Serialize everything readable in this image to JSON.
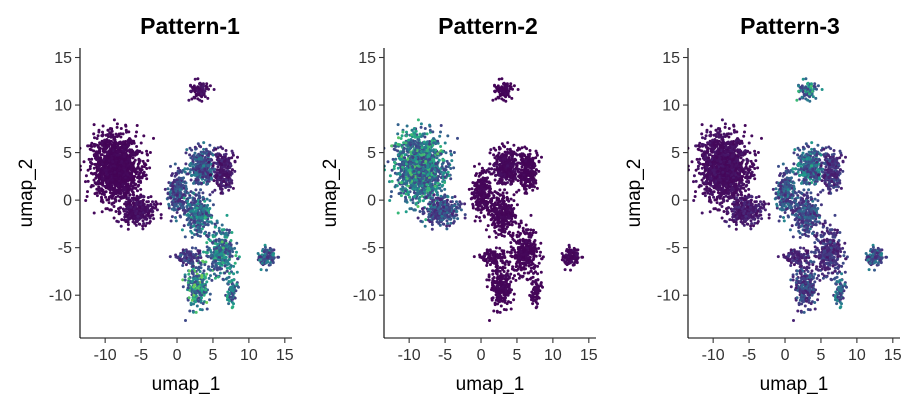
{
  "chart_data": [
    {
      "type": "scatter",
      "title": "Pattern-1",
      "xlabel": "umap_1",
      "ylabel": "umap_2",
      "xlim": [
        -13.5,
        16
      ],
      "ylim": [
        -14.5,
        16
      ],
      "xticks": [
        -10,
        -5,
        0,
        5,
        10,
        15
      ],
      "yticks": [
        -10,
        -5,
        0,
        5,
        10,
        15
      ],
      "color_scale": [
        "#440154",
        "#482878",
        "#3e4989",
        "#31688e",
        "#26828e",
        "#1f9e89",
        "#35b779",
        "#6ece58",
        "#b5de2b",
        "#fde725"
      ],
      "grid": false,
      "cluster_levels": [
        0.02,
        0.05,
        0.3,
        0.35,
        0.45,
        0.1,
        0.55,
        0.6,
        0.05,
        0.4,
        0.5,
        0.25
      ]
    },
    {
      "type": "scatter",
      "title": "Pattern-2",
      "xlabel": "umap_1",
      "ylabel": "umap_2",
      "xlim": [
        -13.5,
        16
      ],
      "ylim": [
        -14.5,
        16
      ],
      "xticks": [
        -10,
        -5,
        0,
        5,
        10,
        15
      ],
      "yticks": [
        -10,
        -5,
        0,
        5,
        10,
        15
      ],
      "color_scale": [
        "#440154",
        "#482878",
        "#3e4989",
        "#31688e",
        "#26828e",
        "#1f9e89",
        "#35b779",
        "#6ece58",
        "#b5de2b",
        "#fde725"
      ],
      "grid": false,
      "cluster_levels": [
        0.55,
        0.3,
        0.02,
        0.03,
        0.02,
        0.02,
        0.02,
        0.02,
        0.02,
        0.03,
        0.02,
        0.02
      ]
    },
    {
      "type": "scatter",
      "title": "Pattern-3",
      "xlabel": "umap_1",
      "ylabel": "umap_2",
      "xlim": [
        -13.5,
        16
      ],
      "ylim": [
        -14.5,
        16
      ],
      "xticks": [
        -10,
        -5,
        0,
        5,
        10,
        15
      ],
      "yticks": [
        -10,
        -5,
        0,
        5,
        10,
        15
      ],
      "color_scale": [
        "#440154",
        "#482878",
        "#3e4989",
        "#31688e",
        "#26828e",
        "#1f9e89",
        "#35b779",
        "#6ece58",
        "#b5de2b",
        "#fde725"
      ],
      "grid": false,
      "cluster_levels": [
        0.05,
        0.1,
        0.35,
        0.45,
        0.3,
        0.2,
        0.2,
        0.25,
        0.55,
        0.35,
        0.4,
        0.15
      ]
    }
  ]
}
